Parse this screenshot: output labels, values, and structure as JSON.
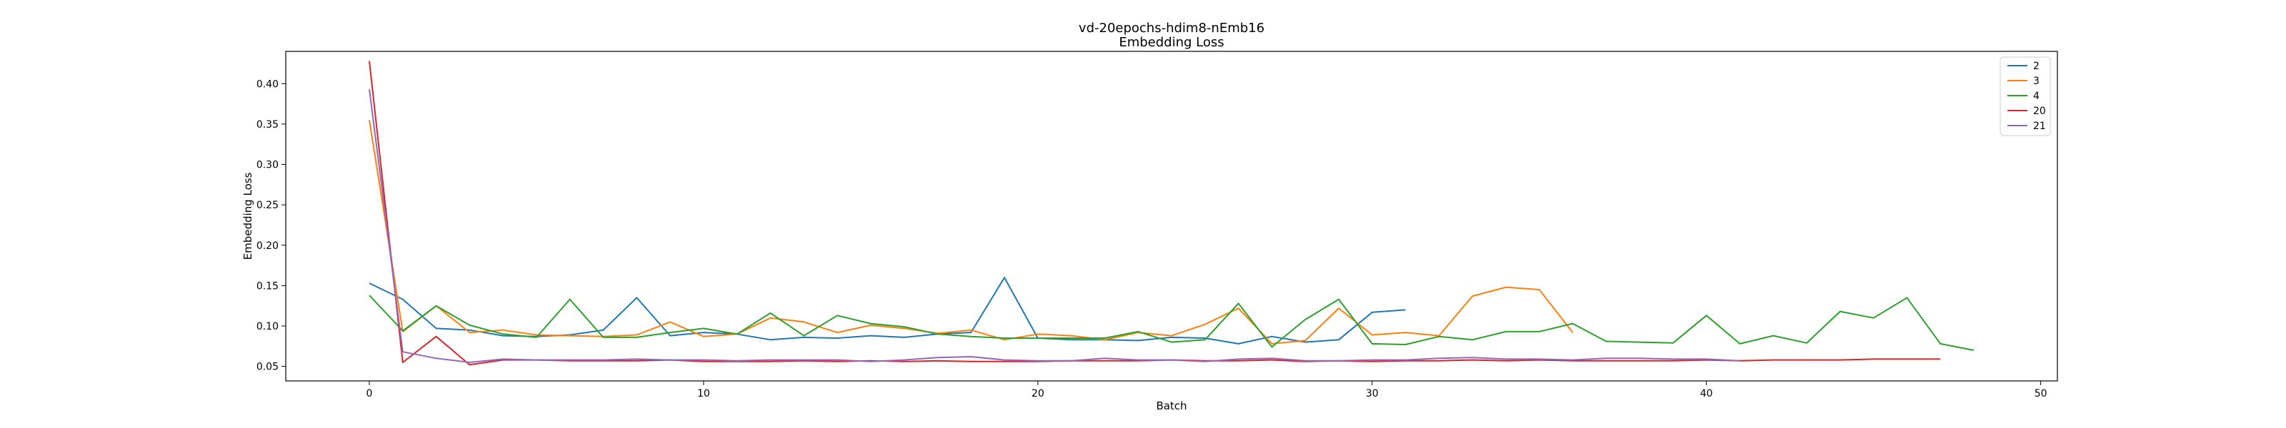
{
  "chart_data": {
    "type": "line",
    "title": "vd-20epochs-hdim8-nEmb16",
    "subtitle": "Embedding Loss",
    "xlabel": "Batch",
    "ylabel": "Embedding Loss",
    "xlim": [
      -2.5,
      50.5
    ],
    "ylim": [
      0.032,
      0.44
    ],
    "xticks": [
      0,
      10,
      20,
      30,
      40,
      50
    ],
    "yticks": [
      0.05,
      0.1,
      0.15,
      0.2,
      0.25,
      0.3,
      0.35,
      0.4
    ],
    "ytick_labels": [
      "0.05",
      "0.10",
      "0.15",
      "0.20",
      "0.25",
      "0.30",
      "0.35",
      "0.40"
    ],
    "grid": false,
    "legend_position": "top-right",
    "series": [
      {
        "name": "2",
        "color": "#1f77b4",
        "values": [
          0.153,
          0.133,
          0.097,
          0.095,
          0.088,
          0.087,
          0.089,
          0.095,
          0.135,
          0.088,
          0.092,
          0.09,
          0.083,
          0.086,
          0.085,
          0.088,
          0.086,
          0.09,
          0.092,
          0.16,
          0.085,
          0.083,
          0.083,
          0.082,
          0.086,
          0.085,
          0.078,
          0.087,
          0.08,
          0.083,
          0.117,
          0.12
        ]
      },
      {
        "name": "3",
        "color": "#ff7f0e",
        "values": [
          0.355,
          0.093,
          0.125,
          0.092,
          0.095,
          0.089,
          0.088,
          0.087,
          0.089,
          0.105,
          0.087,
          0.09,
          0.11,
          0.105,
          0.092,
          0.101,
          0.097,
          0.091,
          0.095,
          0.083,
          0.09,
          0.088,
          0.083,
          0.092,
          0.088,
          0.102,
          0.122,
          0.078,
          0.082,
          0.122,
          0.089,
          0.092,
          0.088,
          0.137,
          0.148,
          0.145,
          0.092
        ]
      },
      {
        "name": "4",
        "color": "#2ca02c",
        "values": [
          0.138,
          0.094,
          0.125,
          0.101,
          0.09,
          0.086,
          0.133,
          0.086,
          0.086,
          0.092,
          0.097,
          0.09,
          0.116,
          0.088,
          0.113,
          0.103,
          0.099,
          0.09,
          0.087,
          0.085,
          0.085,
          0.085,
          0.085,
          0.093,
          0.08,
          0.083,
          0.128,
          0.074,
          0.108,
          0.133,
          0.078,
          0.077,
          0.087,
          0.083,
          0.093,
          0.093,
          0.103,
          0.081,
          0.08,
          0.079,
          0.113,
          0.078,
          0.088,
          0.079,
          0.118,
          0.11,
          0.135,
          0.078,
          0.07
        ]
      },
      {
        "name": "20",
        "color": "#d62728",
        "values": [
          0.428,
          0.055,
          0.087,
          0.052,
          0.058,
          0.058,
          0.057,
          0.057,
          0.057,
          0.058,
          0.056,
          0.056,
          0.056,
          0.057,
          0.056,
          0.057,
          0.056,
          0.057,
          0.056,
          0.056,
          0.056,
          0.057,
          0.057,
          0.057,
          0.058,
          0.057,
          0.057,
          0.058,
          0.056,
          0.057,
          0.056,
          0.057,
          0.057,
          0.058,
          0.057,
          0.058,
          0.057,
          0.057,
          0.057,
          0.057,
          0.058,
          0.057,
          0.058,
          0.058,
          0.058,
          0.059,
          0.059,
          0.059
        ]
      },
      {
        "name": "21",
        "color": "#9467bd",
        "values": [
          0.393,
          0.068,
          0.06,
          0.055,
          0.059,
          0.058,
          0.058,
          0.058,
          0.059,
          0.058,
          0.058,
          0.057,
          0.058,
          0.058,
          0.058,
          0.056,
          0.058,
          0.061,
          0.062,
          0.058,
          0.057,
          0.057,
          0.06,
          0.058,
          0.058,
          0.056,
          0.059,
          0.06,
          0.057,
          0.057,
          0.058,
          0.058,
          0.06,
          0.061,
          0.059,
          0.059,
          0.058,
          0.06,
          0.06,
          0.059,
          0.059,
          0.057
        ]
      }
    ]
  }
}
